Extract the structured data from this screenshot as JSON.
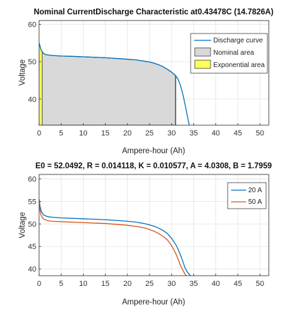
{
  "chart_data": [
    {
      "type": "area",
      "title": "Nominal CurrentDischarge Characteristic at0.43478C (14.7826A)",
      "xlabel": "Ampere-hour (Ah)",
      "ylabel": "Voltage",
      "xlim": [
        0,
        52
      ],
      "ylim": [
        33,
        61
      ],
      "xticks": [
        "0",
        "5",
        "10",
        "15",
        "20",
        "25",
        "30",
        "35",
        "40",
        "45",
        "50"
      ],
      "yticks": [
        "40",
        "50",
        "60"
      ],
      "grid": true,
      "legend_position": "top-right",
      "legend": [
        "Discharge curve",
        "Nominal area",
        "Exponential area"
      ],
      "colors": {
        "discharge": "#0072BD",
        "nominal_fill": "#D9D9D9",
        "exponential_fill": "#FFFF55",
        "region_edge": "#000000"
      },
      "series": [
        {
          "name": "Discharge curve",
          "x": [
            0,
            0.2,
            0.5,
            1,
            1.5,
            2,
            3,
            5,
            8,
            10,
            15,
            20,
            22,
            24,
            25,
            26,
            27,
            28,
            29,
            30,
            30.9,
            31.5,
            32,
            32.5,
            33,
            33.5,
            34
          ],
          "y": [
            55,
            54.2,
            53,
            52.2,
            51.9,
            51.8,
            51.65,
            51.5,
            51.4,
            51.3,
            51.05,
            50.65,
            50.45,
            50.1,
            49.9,
            49.6,
            49.2,
            48.7,
            48,
            47.2,
            46.3,
            45.2,
            43.6,
            41.5,
            38.8,
            35.8,
            33
          ]
        }
      ],
      "nominal_area": {
        "x_start": 0,
        "x_end": 30.9
      },
      "exponential_area": {
        "x_start": 0,
        "x_end": 0.7
      }
    },
    {
      "type": "line",
      "title": "E0 = 52.0492, R = 0.014118, K = 0.010577, A = 4.0308, B = 1.7959",
      "xlabel": "Ampere-hour (Ah)",
      "ylabel": "Voltage",
      "xlim": [
        0,
        52
      ],
      "ylim": [
        38.5,
        61
      ],
      "xticks": [
        "0",
        "5",
        "10",
        "15",
        "20",
        "25",
        "30",
        "35",
        "40",
        "45",
        "50"
      ],
      "yticks": [
        "40",
        "45",
        "50",
        "55",
        "60"
      ],
      "grid": true,
      "legend_position": "top-right",
      "series": [
        {
          "name": "20 A",
          "color": "#0072BD",
          "x": [
            0,
            0.2,
            0.5,
            1,
            2,
            3,
            5,
            10,
            15,
            20,
            22,
            24,
            26,
            27,
            28,
            29,
            30,
            31,
            31.5,
            32,
            32.5,
            33,
            33.5,
            34,
            34.3
          ],
          "y": [
            55.5,
            54,
            52.8,
            52,
            51.6,
            51.5,
            51.35,
            51.15,
            50.95,
            50.6,
            50.4,
            50.05,
            49.5,
            49.1,
            48.6,
            47.9,
            46.8,
            45.3,
            44.3,
            43.1,
            41.8,
            40.3,
            39.4,
            38.8,
            38.5
          ]
        },
        {
          "name": "50 A",
          "color": "#D95319",
          "x": [
            0,
            0.2,
            0.5,
            1,
            2,
            3,
            5,
            10,
            15,
            20,
            22,
            24,
            26,
            27,
            28,
            29,
            30,
            31,
            31.5,
            32,
            32.5,
            33,
            33.3
          ],
          "y": [
            55,
            53,
            51.8,
            51.1,
            50.7,
            50.6,
            50.5,
            50.3,
            50.1,
            49.7,
            49.45,
            49.1,
            48.4,
            47.9,
            47.3,
            46.5,
            45.2,
            43.3,
            42.1,
            40.8,
            39.8,
            38.9,
            38.5
          ]
        }
      ]
    }
  ]
}
